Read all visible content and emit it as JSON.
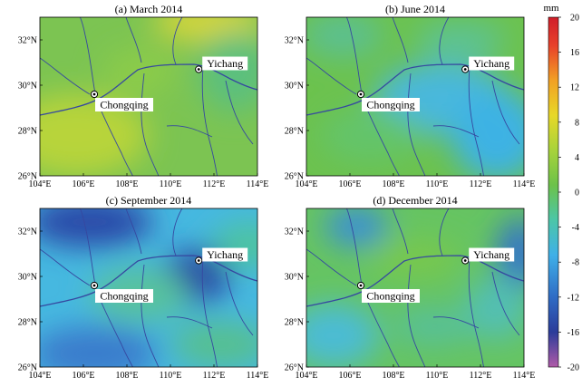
{
  "panels": [
    {
      "id": "a",
      "label": "(a)  March 2014",
      "theme": "march"
    },
    {
      "id": "b",
      "label": "(b)  June 2014",
      "theme": "june"
    },
    {
      "id": "c",
      "label": "(c)  September 2014",
      "theme": "september"
    },
    {
      "id": "d",
      "label": "(d)  December 2014",
      "theme": "december"
    }
  ],
  "axes": {
    "lon_ticks": [
      "104°E",
      "106°E",
      "108°E",
      "110°E",
      "112°E",
      "114°E"
    ],
    "lat_ticks": [
      "32°N",
      "30°N",
      "28°N",
      "26°N"
    ]
  },
  "cities": [
    {
      "name": "Chongqing",
      "lon": 106.5,
      "lat": 29.6
    },
    {
      "name": "Yichang",
      "lon": 111.3,
      "lat": 30.7
    }
  ],
  "colorbar": {
    "unit": "mm",
    "ticks": [
      "20",
      "16",
      "12",
      "8",
      "4",
      "0",
      "-4",
      "-8",
      "-12",
      "-16",
      "-20"
    ],
    "range": [
      -20,
      20
    ],
    "colors": [
      "#b05aa8",
      "#2b3c9a",
      "#2f6cc5",
      "#3fb0e8",
      "#4cc6a8",
      "#6cc24a",
      "#a8d33a",
      "#e8d828",
      "#f2a024",
      "#e8402a",
      "#d01e2a"
    ]
  }
}
